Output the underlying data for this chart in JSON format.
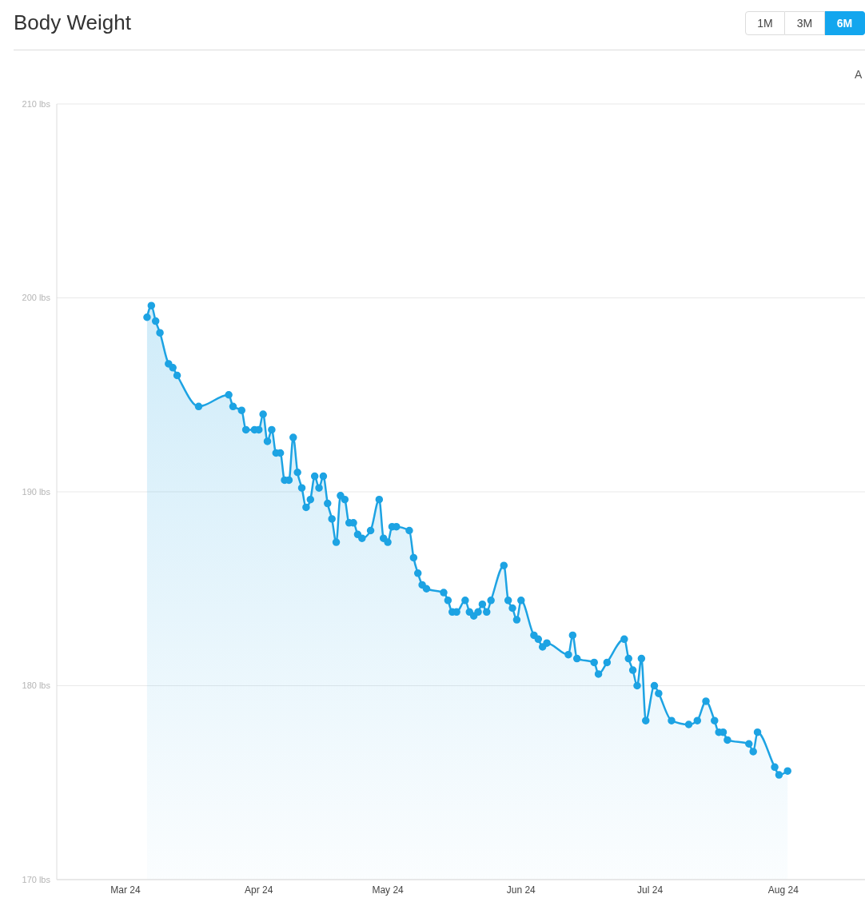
{
  "chart_data": {
    "type": "area",
    "title": "Body Weight",
    "x": [
      "2024-03-06",
      "2024-03-07",
      "2024-03-08",
      "2024-03-09",
      "2024-03-11",
      "2024-03-12",
      "2024-03-13",
      "2024-03-18",
      "2024-03-25",
      "2024-03-26",
      "2024-03-28",
      "2024-03-29",
      "2024-03-31",
      "2024-04-01",
      "2024-04-02",
      "2024-04-03",
      "2024-04-04",
      "2024-04-05",
      "2024-04-06",
      "2024-04-07",
      "2024-04-08",
      "2024-04-09",
      "2024-04-10",
      "2024-04-11",
      "2024-04-12",
      "2024-04-13",
      "2024-04-14",
      "2024-04-15",
      "2024-04-16",
      "2024-04-17",
      "2024-04-18",
      "2024-04-19",
      "2024-04-20",
      "2024-04-21",
      "2024-04-22",
      "2024-04-23",
      "2024-04-24",
      "2024-04-25",
      "2024-04-27",
      "2024-04-29",
      "2024-04-30",
      "2024-05-01",
      "2024-05-02",
      "2024-05-03",
      "2024-05-06",
      "2024-05-07",
      "2024-05-08",
      "2024-05-09",
      "2024-05-10",
      "2024-05-14",
      "2024-05-15",
      "2024-05-16",
      "2024-05-17",
      "2024-05-19",
      "2024-05-20",
      "2024-05-21",
      "2024-05-22",
      "2024-05-23",
      "2024-05-24",
      "2024-05-25",
      "2024-05-28",
      "2024-05-29",
      "2024-05-30",
      "2024-05-31",
      "2024-06-01",
      "2024-06-04",
      "2024-06-05",
      "2024-06-06",
      "2024-06-07",
      "2024-06-12",
      "2024-06-13",
      "2024-06-14",
      "2024-06-18",
      "2024-06-19",
      "2024-06-21",
      "2024-06-25",
      "2024-06-26",
      "2024-06-27",
      "2024-06-28",
      "2024-06-29",
      "2024-06-30",
      "2024-07-02",
      "2024-07-03",
      "2024-07-06",
      "2024-07-10",
      "2024-07-12",
      "2024-07-14",
      "2024-07-16",
      "2024-07-17",
      "2024-07-18",
      "2024-07-19",
      "2024-07-24",
      "2024-07-25",
      "2024-07-26",
      "2024-07-30",
      "2024-07-31",
      "2024-08-02"
    ],
    "values": [
      199.0,
      199.6,
      198.8,
      198.2,
      196.6,
      196.4,
      196.0,
      194.4,
      195.0,
      194.4,
      194.2,
      193.2,
      193.2,
      193.2,
      194.0,
      192.6,
      193.2,
      192.0,
      192.0,
      190.6,
      190.6,
      192.8,
      191.0,
      190.2,
      189.2,
      189.6,
      190.8,
      190.2,
      190.8,
      189.4,
      188.6,
      187.4,
      189.8,
      189.6,
      188.4,
      188.4,
      187.8,
      187.6,
      188.0,
      189.6,
      187.6,
      187.4,
      188.2,
      188.2,
      188.0,
      186.6,
      185.8,
      185.2,
      185.0,
      184.8,
      184.4,
      183.8,
      183.8,
      184.4,
      183.8,
      183.6,
      183.8,
      184.2,
      183.8,
      184.4,
      186.2,
      184.4,
      184.0,
      183.4,
      184.4,
      182.6,
      182.4,
      182.0,
      182.2,
      181.6,
      182.6,
      181.4,
      181.2,
      180.6,
      181.2,
      182.4,
      181.4,
      180.8,
      180.0,
      181.4,
      178.2,
      180.0,
      179.6,
      178.2,
      178.0,
      178.2,
      179.2,
      178.2,
      177.6,
      177.6,
      177.2,
      177.0,
      176.6,
      177.6,
      175.8,
      175.4,
      175.6
    ],
    "color": "#1da3e3",
    "xlim": [
      "2024-02-14",
      "2024-08-20"
    ],
    "xticks": [
      {
        "value": "2024-03-01",
        "label": "Mar 24"
      },
      {
        "value": "2024-04-01",
        "label": "Apr 24"
      },
      {
        "value": "2024-05-01",
        "label": "May 24"
      },
      {
        "value": "2024-06-01",
        "label": "Jun 24"
      },
      {
        "value": "2024-07-01",
        "label": "Jul 24"
      },
      {
        "value": "2024-08-01",
        "label": "Aug 24"
      }
    ],
    "ylim": [
      170,
      210
    ],
    "yticks": [
      {
        "value": 170,
        "label": "170 lbs"
      },
      {
        "value": 180,
        "label": "180 lbs"
      },
      {
        "value": 190,
        "label": "190 lbs"
      },
      {
        "value": 200,
        "label": "200 lbs"
      },
      {
        "value": 210,
        "label": "210 lbs"
      }
    ],
    "grid": "y",
    "marker": "circle",
    "annotations": [
      "1M",
      "3M",
      "6M",
      "A"
    ]
  }
}
